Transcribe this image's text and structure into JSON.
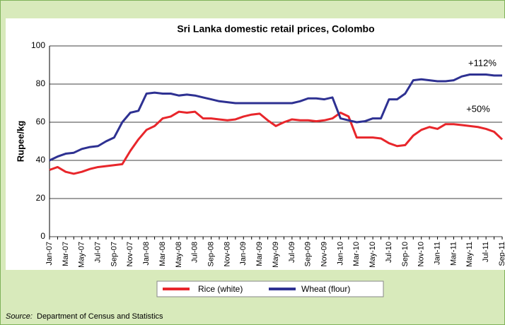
{
  "chart_data": {
    "type": "line",
    "title": "Sri Lanka domestic retail prices, Colombo",
    "y_label": "Rupee/kg",
    "categories": [
      "Jan-07",
      null,
      "Mar-07",
      null,
      "May-07",
      null,
      "Jul-07",
      null,
      "Sep-07",
      null,
      "Nov-07",
      null,
      "Jan-08",
      null,
      "Mar-08",
      null,
      "May-08",
      null,
      "Jul-08",
      null,
      "Sep-08",
      null,
      "Nov-08",
      null,
      "Jan-09",
      null,
      "Mar-09",
      null,
      "May-09",
      null,
      "Jul-09",
      null,
      "Sep-09",
      null,
      "Nov-09",
      null,
      "Jan-10",
      null,
      "Mar-10",
      null,
      "May-10",
      null,
      "Jul-10",
      null,
      "Sep-10",
      null,
      "Nov-10",
      null,
      "Jan-11",
      null,
      "Mar-11",
      null,
      "May-11",
      null,
      "Jul-11",
      null,
      "Sep-11"
    ],
    "series": [
      {
        "name": "Rice (white)",
        "color": "#e8262b",
        "values": [
          35,
          36.5,
          34,
          33,
          34,
          35.5,
          36.5,
          37,
          37.5,
          38,
          45,
          51,
          56,
          58,
          62,
          63,
          65.5,
          65,
          65.5,
          62,
          62,
          61.5,
          61,
          61.5,
          63,
          64,
          64.5,
          61,
          58,
          60,
          61.5,
          61,
          61,
          60.5,
          61,
          62,
          65,
          63,
          52,
          52,
          52,
          51.5,
          49,
          47.5,
          48,
          53,
          56,
          57.5,
          56.5,
          59,
          59,
          58.5,
          58,
          57.5,
          56.5,
          55,
          51
        ]
      },
      {
        "name": "Wheat (flour)",
        "color": "#2e3192",
        "values": [
          40,
          42,
          43.5,
          44,
          46,
          47,
          47.5,
          50,
          52,
          60,
          65,
          66,
          75,
          75.5,
          75,
          75,
          74,
          74.5,
          74,
          73,
          72,
          71,
          70.5,
          70,
          70,
          70,
          70,
          70,
          70,
          70,
          70,
          71,
          72.5,
          72.5,
          72,
          73,
          62,
          61,
          60,
          60.5,
          62,
          62,
          72,
          72,
          75,
          82,
          82.5,
          82,
          81.5,
          81.5,
          82,
          84,
          85,
          85,
          85,
          84.5,
          84.5
        ]
      }
    ],
    "ylim": [
      0,
      100
    ],
    "yticks": [
      0,
      20,
      40,
      60,
      80,
      100
    ],
    "grid": true,
    "annotations": [
      "+112%",
      "+50%"
    ],
    "source_label": "Source:",
    "source": "Department of Census and Statistics"
  }
}
